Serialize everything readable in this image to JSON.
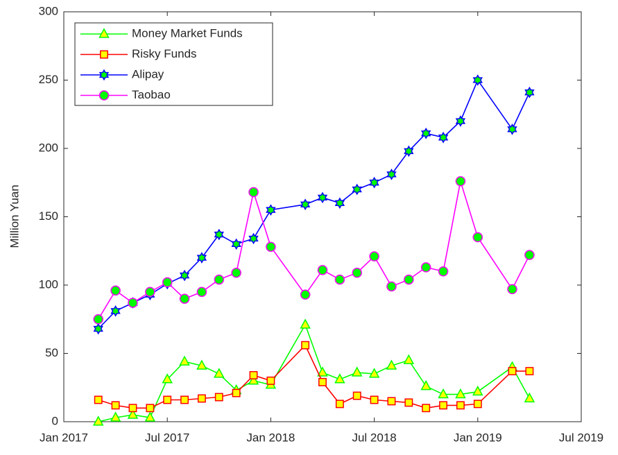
{
  "chart_data": {
    "type": "line",
    "y_label": "Million Yuan",
    "x": [
      "2017-03",
      "2017-04",
      "2017-05",
      "2017-06",
      "2017-07",
      "2017-08",
      "2017-09",
      "2017-10",
      "2017-11",
      "2017-12",
      "2018-01",
      "2018-03",
      "2018-04",
      "2018-05",
      "2018-06",
      "2018-07",
      "2018-08",
      "2018-09",
      "2018-10",
      "2018-11",
      "2018-12",
      "2019-01",
      "2019-03",
      "2019-04"
    ],
    "xlim": [
      "2017-01",
      "2019-07"
    ],
    "xticks": [
      {
        "value": "2017-01",
        "label": "Jan 2017"
      },
      {
        "value": "2017-07",
        "label": "Jul 2017"
      },
      {
        "value": "2018-01",
        "label": "Jan 2018"
      },
      {
        "value": "2018-07",
        "label": "Jul 2018"
      },
      {
        "value": "2019-01",
        "label": "Jan 2019"
      },
      {
        "value": "2019-07",
        "label": "Jul 2019"
      }
    ],
    "ylim": [
      0,
      300
    ],
    "yticks": [
      0,
      50,
      100,
      150,
      200,
      250,
      300
    ],
    "legend": "upper-left",
    "series": [
      {
        "name": "Money Market Funds",
        "color": "#00ff00",
        "marker": "triangle",
        "marker_color": "#ffff00",
        "values": [
          0,
          3,
          5,
          3,
          31,
          44,
          41,
          35,
          23,
          30,
          27,
          71,
          36,
          31,
          36,
          35,
          41,
          45,
          26,
          20,
          20,
          22,
          40,
          17
        ]
      },
      {
        "name": "Risky Funds",
        "color": "#ff0000",
        "marker": "square",
        "marker_color": "#ffff00",
        "values": [
          16,
          12,
          10,
          10,
          16,
          16,
          17,
          18,
          21,
          34,
          30,
          56,
          29,
          13,
          19,
          16,
          15,
          14,
          10,
          12,
          12,
          13,
          37,
          37
        ]
      },
      {
        "name": "Alipay",
        "color": "#0000ff",
        "marker": "hexagram",
        "marker_color": "#00ff00",
        "values": [
          68,
          81,
          87,
          93,
          101,
          107,
          120,
          137,
          130,
          134,
          155,
          159,
          164,
          160,
          170,
          175,
          181,
          198,
          211,
          208,
          220,
          250,
          214,
          241
        ]
      },
      {
        "name": "Taobao",
        "color": "#ff00ff",
        "marker": "circle",
        "marker_color": "#00ff00",
        "values": [
          75,
          96,
          87,
          95,
          102,
          90,
          95,
          104,
          109,
          168,
          128,
          93,
          111,
          104,
          109,
          121,
          99,
          104,
          113,
          110,
          176,
          135,
          97,
          122
        ]
      }
    ]
  }
}
